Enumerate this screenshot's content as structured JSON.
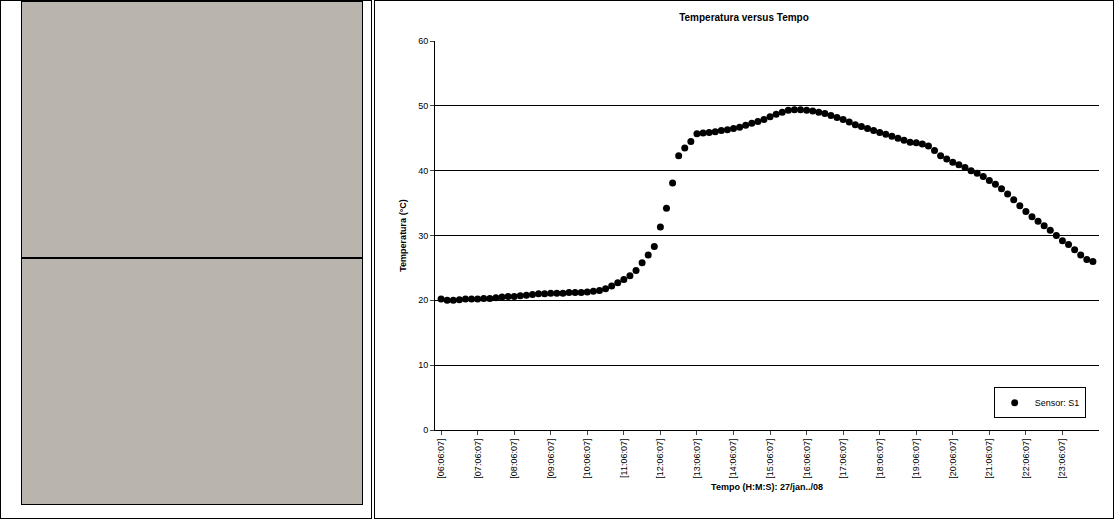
{
  "chart_data": {
    "type": "scatter",
    "title": "Temperatura versus Tempo",
    "x_label": "Tempo (H:M:S): 27/jan../08",
    "y_label": "Temperatura (°C)",
    "categories": [
      "[06:06:07]",
      null,
      null,
      null,
      null,
      null,
      "[07:06:07]",
      null,
      null,
      null,
      null,
      null,
      "[08:06:07]",
      null,
      null,
      null,
      null,
      null,
      "[09:06:07]",
      null,
      null,
      null,
      null,
      null,
      "[10:06:07]",
      null,
      null,
      null,
      null,
      null,
      "[11:06:07]",
      null,
      null,
      null,
      null,
      null,
      "[12:06:07]",
      null,
      null,
      null,
      null,
      null,
      "[13:06:07]",
      null,
      null,
      null,
      null,
      null,
      "[14:06:07]",
      null,
      null,
      null,
      null,
      null,
      "[15:06:07]",
      null,
      null,
      null,
      null,
      null,
      "[16:06:07]",
      null,
      null,
      null,
      null,
      null,
      "[17:06:07]",
      null,
      null,
      null,
      null,
      null,
      "[18:06:07]",
      null,
      null,
      null,
      null,
      null,
      "[19:06:07]",
      null,
      null,
      null,
      null,
      null,
      "[20:06:07]",
      null,
      null,
      null,
      null,
      null,
      "[21:06:07]",
      null,
      null,
      null,
      null,
      null,
      "[22:06:07]",
      null,
      null,
      null,
      null,
      null,
      "[23:06:07]",
      null,
      null,
      null,
      null,
      null
    ],
    "series": [
      {
        "name": "Sensor: S1",
        "color": "#000000",
        "marker": "circle",
        "values": [
          20.2,
          20.0,
          20.0,
          20.1,
          20.2,
          20.2,
          20.2,
          20.3,
          20.3,
          20.4,
          20.5,
          20.6,
          20.6,
          20.7,
          20.8,
          20.9,
          21.0,
          21.0,
          21.1,
          21.1,
          21.1,
          21.2,
          21.2,
          21.2,
          21.3,
          21.4,
          21.5,
          21.8,
          22.2,
          22.7,
          23.2,
          23.8,
          24.6,
          25.8,
          27.0,
          28.3,
          31.3,
          34.2,
          38.1,
          42.3,
          43.5,
          44.5,
          45.7,
          45.8,
          45.9,
          46.0,
          46.2,
          46.3,
          46.5,
          46.7,
          47.0,
          47.3,
          47.6,
          47.9,
          48.3,
          48.7,
          49.0,
          49.3,
          49.4,
          49.4,
          49.3,
          49.2,
          49.0,
          48.8,
          48.5,
          48.2,
          47.9,
          47.5,
          47.1,
          46.8,
          46.5,
          46.2,
          45.9,
          45.6,
          45.3,
          45.0,
          44.7,
          44.4,
          44.3,
          44.1,
          43.8,
          43.1,
          42.3,
          41.8,
          41.3,
          40.9,
          40.5,
          40.0,
          39.6,
          39.1,
          38.5,
          37.9,
          37.2,
          36.4,
          35.5,
          34.6,
          33.7,
          32.9,
          32.2,
          31.5,
          30.8,
          30.0,
          29.2,
          28.6,
          27.8,
          27.0,
          26.3,
          26.0
        ]
      }
    ],
    "ylim": [
      0,
      60
    ],
    "yticks": [
      0,
      10,
      20,
      30,
      40,
      50,
      60
    ],
    "grid": true,
    "legend": "bottom-right"
  }
}
